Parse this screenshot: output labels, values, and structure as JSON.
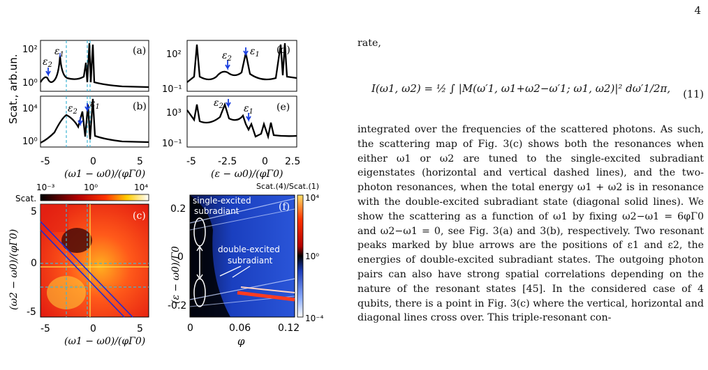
{
  "page_number": "4",
  "panel_labels": [
    "(a)",
    "(b)",
    "(c)",
    "(d)",
    "(e)",
    "(f)"
  ],
  "eps1": "ε1",
  "eps2": "ε2",
  "ylabel_scat": "Scat., arb.un.",
  "scat_c_label": "Scat.",
  "ratio_label": "Scat.(4)/Scat.(1)",
  "xlabel_a": "(ω1 − ω0)/(φΓ0)",
  "xlabel_d": "(ε − ω0)/(φΓ0)",
  "ylabel_c": "(ω2 − ω0)/(φΓ0)",
  "ylabel_f": "(ε − ω0)/Γ0",
  "xlabel_f": "φ",
  "single_label": "single-excited subradiant",
  "double_label": "double-excited subradiant",
  "ticks_a_x": [
    "-5",
    "0",
    "5"
  ],
  "ticks_d_x": [
    "-5",
    "-2.5",
    "0",
    "2.5"
  ],
  "ticks_a_y": [
    "10²",
    "10⁰"
  ],
  "ticks_b_y": [
    "10⁴",
    "10⁰"
  ],
  "ticks_d_y": [
    "10²",
    "10⁻¹"
  ],
  "ticks_e_y": [
    "10³",
    "10⁻¹"
  ],
  "ticks_c_cb": [
    "10⁻³",
    "10⁰",
    "10⁴"
  ],
  "ticks_c_y": [
    "5",
    "0",
    "-5"
  ],
  "ticks_f_y": [
    "0.2",
    "0",
    "-0.2"
  ],
  "ticks_f_x": [
    "0",
    "0.06",
    "0.12"
  ],
  "ticks_f_cb": [
    "10⁴",
    "10⁰",
    "10⁻⁴"
  ],
  "text": {
    "rate": "rate,",
    "eq_lhs": "I(ω1, ω2) = ",
    "eq_rhs": "½ ∫ |M(ω′1, ω1+ω2−ω′1; ω1, ω2)|² dω′1/2π,",
    "eq_number": "(11)",
    "p1": "integrated over the frequencies of the scattered photons. As such, the scattering map of Fig. 3(c) shows both the resonances when either ω1 or ω2 are tuned to the single-excited subradiant eigenstates (horizontal and vertical dashed lines), and the two-photon resonances, when the total energy ω1 + ω2 is in resonance with the double-excited subradiant state (diagonal solid lines). We show the scattering as a function of ω1 by fixing ω2−ω1 = 6φΓ0 and ω2−ω1 = 0, see Fig. 3(a) and 3(b), respectively. Two resonant peaks marked by blue arrows are the positions of ε1 and ε2, the energies of double-excited subradiant states. The outgoing photon pairs can also have strong spatial correlations depending on the nature of the resonant states [45]. In the considered case of 4 qubits, there is a point in Fig. 3(c) where the vertical, horizontal and diagonal lines cross over. This triple-resonant con-"
  }
}
